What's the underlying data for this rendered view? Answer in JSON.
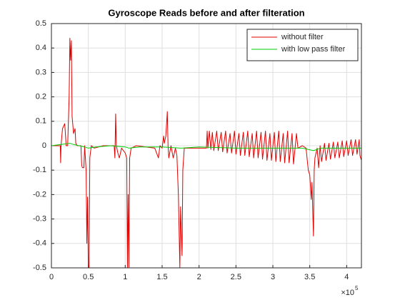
{
  "chart_data": {
    "type": "line",
    "title": "Gyroscope Reads before and after filteration",
    "x_multiplier": "×10",
    "x_multiplier_exponent": "5",
    "xlim": [
      0,
      420000
    ],
    "ylim": [
      -0.5,
      0.5
    ],
    "xticks": [
      {
        "value": 0,
        "label": "0"
      },
      {
        "value": 50000,
        "label": "0.5"
      },
      {
        "value": 100000,
        "label": "1"
      },
      {
        "value": 150000,
        "label": "1.5"
      },
      {
        "value": 200000,
        "label": "2"
      },
      {
        "value": 250000,
        "label": "2.5"
      },
      {
        "value": 300000,
        "label": "3"
      },
      {
        "value": 350000,
        "label": "3.5"
      },
      {
        "value": 400000,
        "label": "4"
      }
    ],
    "yticks": [
      -0.5,
      -0.4,
      -0.3,
      -0.2,
      -0.1,
      0,
      0.1,
      0.2,
      0.3,
      0.4,
      0.5
    ],
    "grid": true,
    "legend": "northeast",
    "series": [
      {
        "name": "without filter",
        "color": "#e00000",
        "x": [
          0,
          10000,
          12000,
          12500,
          13000,
          15000,
          18000,
          20000,
          22000,
          24000,
          25000,
          26000,
          27000,
          28000,
          30000,
          32000,
          33000,
          35000,
          40000,
          41000,
          42000,
          44000,
          45000,
          47000,
          48000,
          49000,
          50000,
          51000,
          52000,
          54000,
          58000,
          70000,
          85000,
          86000,
          87000,
          88000,
          90000,
          92000,
          95000,
          100000,
          102000,
          103000,
          104000,
          105000,
          106000,
          108000,
          115000,
          140000,
          145000,
          147000,
          150000,
          152000,
          153000,
          155000,
          157000,
          158000,
          159000,
          162000,
          165000,
          168000,
          170000,
          172000,
          174000,
          175000,
          177000,
          178000,
          180000,
          185000,
          205000,
          210000,
          211000,
          212000,
          214000,
          216000,
          218000,
          220000,
          224000,
          226000,
          230000,
          232000,
          236000,
          238000,
          242000,
          244000,
          248000,
          250000,
          254000,
          256000,
          260000,
          262000,
          266000,
          268000,
          272000,
          274000,
          278000,
          280000,
          284000,
          286000,
          290000,
          292000,
          296000,
          298000,
          302000,
          304000,
          308000,
          310000,
          314000,
          316000,
          320000,
          322000,
          326000,
          328000,
          332000,
          334000,
          340000,
          345000,
          348000,
          350000,
          352000,
          353000,
          355000,
          356000,
          357000,
          360000,
          362000,
          364000,
          366000,
          370000,
          372000,
          376000,
          378000,
          382000,
          384000,
          388000,
          390000,
          394000,
          396000,
          400000,
          402000,
          406000,
          408000,
          412000,
          414000,
          417000,
          418000,
          420000
        ],
        "values": [
          0,
          0,
          0,
          -0.07,
          0,
          0.07,
          0.09,
          0,
          0,
          0.2,
          0.44,
          0.35,
          0.43,
          0.12,
          0.05,
          0.07,
          0.01,
          0,
          0,
          -0.08,
          -0.09,
          -0.09,
          0,
          -0.1,
          -0.4,
          -0.21,
          -0.5,
          -0.5,
          -0.05,
          0,
          -0.01,
          0,
          0,
          -0.05,
          0.13,
          0,
          -0.03,
          -0.05,
          -0.01,
          -0.03,
          -0.05,
          -0.5,
          -0.2,
          -0.5,
          -0.05,
          -0.01,
          0,
          -0.01,
          -0.05,
          0,
          -0.01,
          0.04,
          0.01,
          0.04,
          0.14,
          0,
          -0.05,
          0,
          -0.05,
          -0.01,
          -0.04,
          -0.2,
          -0.5,
          -0.25,
          -0.45,
          -0.1,
          -0.01,
          -0.01,
          -0.01,
          -0.01,
          0.06,
          -0.01,
          0.06,
          -0.015,
          0.055,
          -0.02,
          0.06,
          -0.02,
          0.055,
          -0.025,
          0.06,
          -0.03,
          0.05,
          -0.03,
          0.06,
          -0.035,
          0.05,
          -0.04,
          0.055,
          -0.04,
          0.06,
          -0.045,
          0.05,
          -0.05,
          0.06,
          -0.05,
          0.055,
          -0.055,
          0.06,
          -0.06,
          0.05,
          -0.06,
          0.055,
          -0.065,
          0.06,
          -0.065,
          0.05,
          -0.07,
          0.06,
          -0.07,
          0.05,
          -0.075,
          0.05,
          -0.01,
          0,
          -0.01,
          -0.1,
          -0.12,
          -0.22,
          -0.15,
          -0.37,
          -0.1,
          -0.05,
          -0.01,
          -0.09,
          0,
          -0.065,
          0.01,
          -0.06,
          0.01,
          -0.055,
          0.015,
          -0.05,
          0.015,
          -0.05,
          0.02,
          -0.045,
          0.02,
          -0.04,
          0.025,
          -0.04,
          0.025,
          -0.035,
          0.025,
          -0.04,
          -0.06
        ]
      },
      {
        "name": "with low pass filter",
        "color": "#00cc00",
        "x": [
          0,
          25000,
          30000,
          45000,
          50000,
          60000,
          80000,
          100000,
          105000,
          120000,
          150000,
          175000,
          200000,
          250000,
          300000,
          340000,
          355000,
          365000,
          420000
        ],
        "values": [
          0,
          0.01,
          0.005,
          -0.005,
          -0.01,
          -0.005,
          0,
          -0.005,
          -0.01,
          -0.005,
          -0.005,
          -0.01,
          -0.005,
          -0.01,
          -0.01,
          -0.01,
          -0.02,
          -0.01,
          -0.01
        ]
      }
    ]
  }
}
